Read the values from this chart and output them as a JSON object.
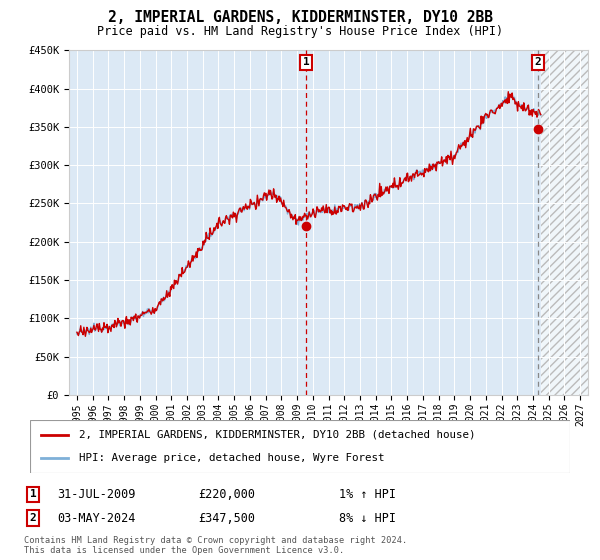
{
  "title": "2, IMPERIAL GARDENS, KIDDERMINSTER, DY10 2BB",
  "subtitle": "Price paid vs. HM Land Registry's House Price Index (HPI)",
  "legend_line1": "2, IMPERIAL GARDENS, KIDDERMINSTER, DY10 2BB (detached house)",
  "legend_line2": "HPI: Average price, detached house, Wyre Forest",
  "marker1_date": "31-JUL-2009",
  "marker1_price": "£220,000",
  "marker1_hpi": "1% ↑ HPI",
  "marker1_year": 2009.58,
  "marker1_value": 220000,
  "marker2_date": "03-MAY-2024",
  "marker2_price": "£347,500",
  "marker2_hpi": "8% ↓ HPI",
  "marker2_year": 2024.33,
  "marker2_value": 347500,
  "plot_bg_color": "#dce9f5",
  "hatch_start": 2024.5,
  "hatch_end": 2027.5,
  "red_color": "#cc0000",
  "blue_color": "#7fb0d8",
  "copyright_text": "Contains HM Land Registry data © Crown copyright and database right 2024.\nThis data is licensed under the Open Government Licence v3.0.",
  "ylim": [
    0,
    450000
  ],
  "xlim": [
    1994.5,
    2027.5
  ],
  "yticks": [
    0,
    50000,
    100000,
    150000,
    200000,
    250000,
    300000,
    350000,
    400000,
    450000
  ],
  "ytick_labels": [
    "£0",
    "£50K",
    "£100K",
    "£150K",
    "£200K",
    "£250K",
    "£300K",
    "£350K",
    "£400K",
    "£450K"
  ],
  "xtick_years": [
    1995,
    1996,
    1997,
    1998,
    1999,
    2000,
    2001,
    2002,
    2003,
    2004,
    2005,
    2006,
    2007,
    2008,
    2009,
    2010,
    2011,
    2012,
    2013,
    2014,
    2015,
    2016,
    2017,
    2018,
    2019,
    2020,
    2021,
    2022,
    2023,
    2024,
    2025,
    2026,
    2027
  ]
}
